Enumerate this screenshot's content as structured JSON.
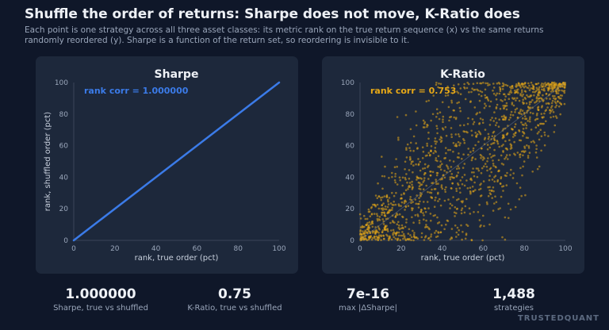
{
  "header": {
    "title": "Shuffle the order of returns: Sharpe does not move, K-Ratio does",
    "subtitle": "Each point is one strategy across all three asset classes: its metric rank on the true return sequence (x) vs the same returns randomly reordered (y). Sharpe is a function of the return set, so reordering is invisible to it."
  },
  "colors": {
    "background": "#0f1729",
    "panel": "#1d283b",
    "sharpe": "#3b7be8",
    "kratio": "#e6a817",
    "axis_text": "#9aa6ba"
  },
  "chart_data": [
    {
      "type": "line",
      "title": "Sharpe",
      "xlabel": "rank, true order (pct)",
      "ylabel": "rank, shuffled order (pct)",
      "xlim": [
        0,
        100
      ],
      "ylim": [
        0,
        100
      ],
      "xticks": [
        "0",
        "20",
        "40",
        "60",
        "80",
        "100"
      ],
      "yticks": [
        "0",
        "20",
        "40",
        "60",
        "80",
        "100"
      ],
      "annotation": "rank corr = 1.000000",
      "x": [
        0,
        100
      ],
      "y": [
        0,
        100
      ],
      "color": "#3b7be8"
    },
    {
      "type": "scatter",
      "title": "K-Ratio",
      "xlabel": "rank, true order (pct)",
      "ylabel": "",
      "xlim": [
        0,
        100
      ],
      "ylim": [
        0,
        100
      ],
      "xticks": [
        "0",
        "20",
        "40",
        "60",
        "80",
        "100"
      ],
      "yticks": [
        "0",
        "20",
        "40",
        "60",
        "80",
        "100"
      ],
      "annotation": "rank corr = 0.753",
      "n_points": 1488,
      "rank_correlation": 0.753,
      "color": "#e6a817"
    }
  ],
  "stats": [
    {
      "value": "1.000000",
      "label": "Sharpe, true vs shuffled"
    },
    {
      "value": "0.75",
      "label": "K-Ratio, true vs shuffled"
    },
    {
      "value": "7e-16",
      "label": "max |ΔSharpe|"
    },
    {
      "value": "1,488",
      "label": "strategies"
    }
  ],
  "brand": "TRUSTEDQUANT"
}
